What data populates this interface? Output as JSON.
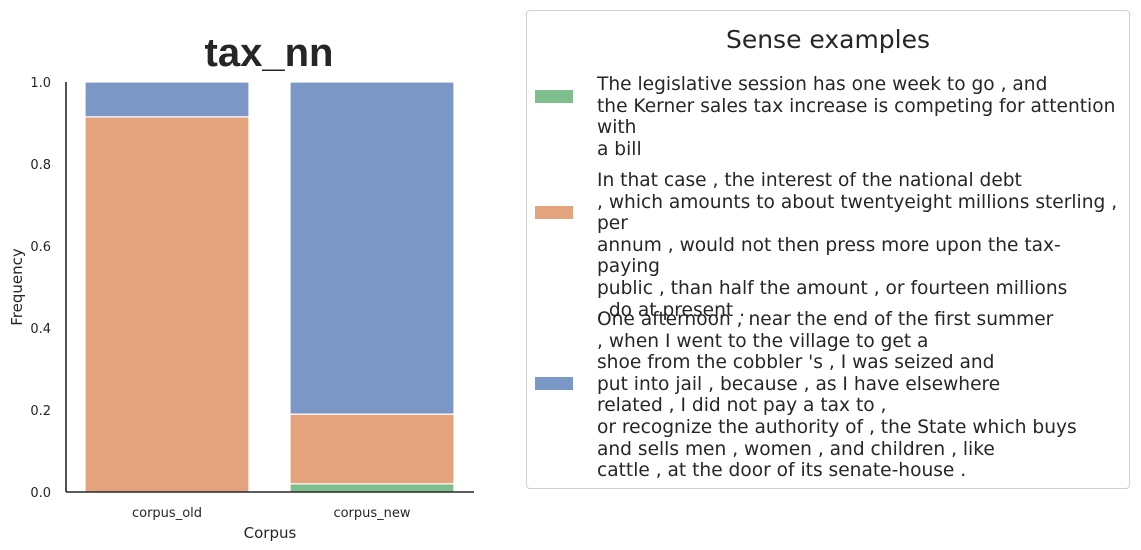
{
  "chart_data": {
    "type": "bar",
    "stacked": true,
    "title": "tax_nn",
    "xlabel": "Corpus",
    "ylabel": "Frequency",
    "categories": [
      "corpus_old",
      "corpus_new"
    ],
    "ylim": [
      0,
      1.0
    ],
    "yticks": [
      "0.0",
      "0.2",
      "0.4",
      "0.6",
      "0.8",
      "1.0"
    ],
    "grid": false,
    "legend_placement": "right",
    "series": [
      {
        "color": "#7fbf8e",
        "values": [
          0.0,
          0.02
        ]
      },
      {
        "color": "#e4a37c",
        "values": [
          0.915,
          0.17
        ]
      },
      {
        "color": "#7a97c6",
        "values": [
          0.085,
          0.81
        ]
      }
    ]
  },
  "legend": {
    "title": "Sense examples",
    "entries": [
      {
        "color": "#7fbf8e",
        "text": "The legislative session has one week to go , and\nthe Kerner sales tax increase is competing for attention with\na bill"
      },
      {
        "color": "#e4a37c",
        "text": "In that case , the interest of the national debt\n, which amounts to about twentyeight millions sterling , per\nannum , would not then press more upon the tax-paying\npublic , than half the amount , or fourteen millions\n, do at present ."
      },
      {
        "color": "#7a97c6",
        "text": "One afternoon , near the end of the first summer\n, when I went to the village to get a\nshoe from the cobbler 's , I was seized and\nput into jail , because , as I have elsewhere\nrelated , I did not pay a tax to ,\nor recognize the authority of , the State which buys\nand sells men , women , and children , like\ncattle , at the door of its senate-house ."
      }
    ]
  }
}
